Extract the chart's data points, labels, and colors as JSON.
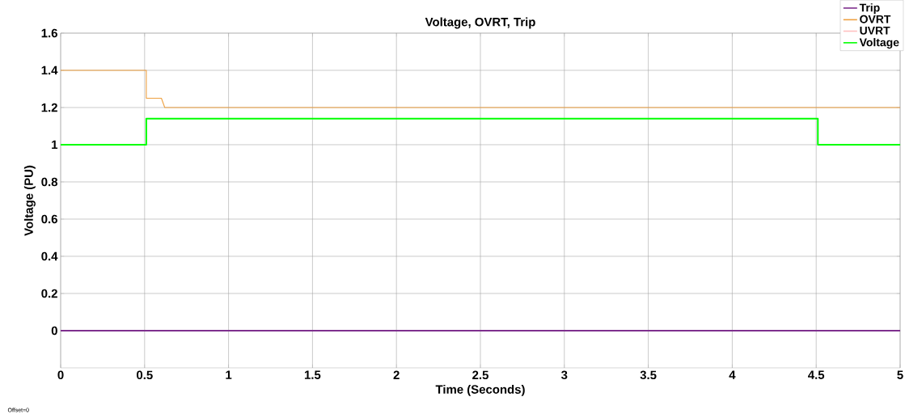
{
  "chart_data": {
    "type": "line",
    "title": "Voltage, OVRT, Trip",
    "xlabel": "Time (Seconds)",
    "ylabel": "Voltage (PU)",
    "series": [
      {
        "name": "Trip",
        "color": "#7e2f8e",
        "x": [
          0,
          5
        ],
        "values": [
          0,
          0
        ]
      },
      {
        "name": "OVRT",
        "color": "#eea040",
        "x": [
          0,
          0.51,
          0.51,
          0.6,
          0.62,
          5
        ],
        "values": [
          1.4,
          1.4,
          1.25,
          1.25,
          1.2,
          1.2
        ]
      },
      {
        "name": "UVRT",
        "color": "#ffc0c0"
      },
      {
        "name": "Voltage",
        "color": "#00ff00",
        "x": [
          0,
          0.51,
          0.51,
          4.51,
          4.51,
          5
        ],
        "values": [
          1,
          1,
          1.14,
          1.14,
          1,
          1
        ]
      }
    ],
    "xlim": [
      0,
      5
    ],
    "ylim": [
      -0.2,
      1.6
    ],
    "xticks": [
      0,
      0.5,
      1,
      1.5,
      2,
      2.5,
      3,
      3.5,
      4,
      4.5,
      5
    ],
    "yticks": [
      0,
      0.2,
      0.4,
      0.6,
      0.8,
      1,
      1.2,
      1.4,
      1.6
    ],
    "grid": true,
    "legend": "top right",
    "line_style": "solid",
    "marker": "none",
    "annotations": [
      "Offset=0"
    ]
  }
}
